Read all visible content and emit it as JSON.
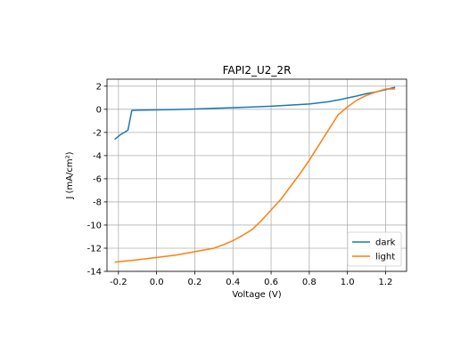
{
  "chart_data": {
    "type": "line",
    "title": "FAPI2_U2_2R",
    "xlabel": "Voltage (V)",
    "ylabel": "J (mA/cm²)",
    "xlim": [
      -0.26,
      1.31
    ],
    "ylim": [
      -14,
      2.6
    ],
    "x_ticks": [
      -0.2,
      0.0,
      0.2,
      0.4,
      0.6,
      0.8,
      1.0,
      1.2
    ],
    "x_tick_labels": [
      "-0.2",
      "0.0",
      "0.2",
      "0.4",
      "0.6",
      "0.8",
      "1.0",
      "1.2"
    ],
    "y_ticks": [
      -14,
      -12,
      -10,
      -8,
      -6,
      -4,
      -2,
      0,
      2
    ],
    "y_tick_labels": [
      "-14",
      "-12",
      "-10",
      "-8",
      "-6",
      "-4",
      "-2",
      "0",
      "2"
    ],
    "grid": true,
    "legend_position": "bottom-right",
    "series": [
      {
        "name": "dark",
        "color": "#1f77b4",
        "x": [
          -0.22,
          -0.19,
          -0.15,
          -0.13,
          -0.1,
          0.0,
          0.1,
          0.2,
          0.3,
          0.4,
          0.5,
          0.6,
          0.7,
          0.8,
          0.85,
          0.9,
          0.95,
          1.0,
          1.05,
          1.1,
          1.15,
          1.2,
          1.25
        ],
        "y": [
          -2.6,
          -2.2,
          -1.8,
          -0.1,
          -0.08,
          -0.05,
          -0.02,
          0.03,
          0.08,
          0.14,
          0.2,
          0.27,
          0.36,
          0.46,
          0.55,
          0.65,
          0.8,
          0.98,
          1.15,
          1.35,
          1.5,
          1.7,
          1.9
        ]
      },
      {
        "name": "light",
        "color": "#ff7f0e",
        "x": [
          -0.22,
          -0.1,
          0.0,
          0.1,
          0.2,
          0.3,
          0.35,
          0.4,
          0.45,
          0.5,
          0.55,
          0.6,
          0.65,
          0.7,
          0.75,
          0.8,
          0.85,
          0.9,
          0.95,
          1.0,
          1.05,
          1.1,
          1.15,
          1.2,
          1.25
        ],
        "y": [
          -13.2,
          -13.0,
          -12.8,
          -12.6,
          -12.3,
          -12.0,
          -11.7,
          -11.35,
          -10.9,
          -10.4,
          -9.6,
          -8.7,
          -7.8,
          -6.7,
          -5.6,
          -4.4,
          -3.1,
          -1.8,
          -0.5,
          0.2,
          0.8,
          1.2,
          1.5,
          1.75,
          1.75
        ]
      }
    ]
  }
}
